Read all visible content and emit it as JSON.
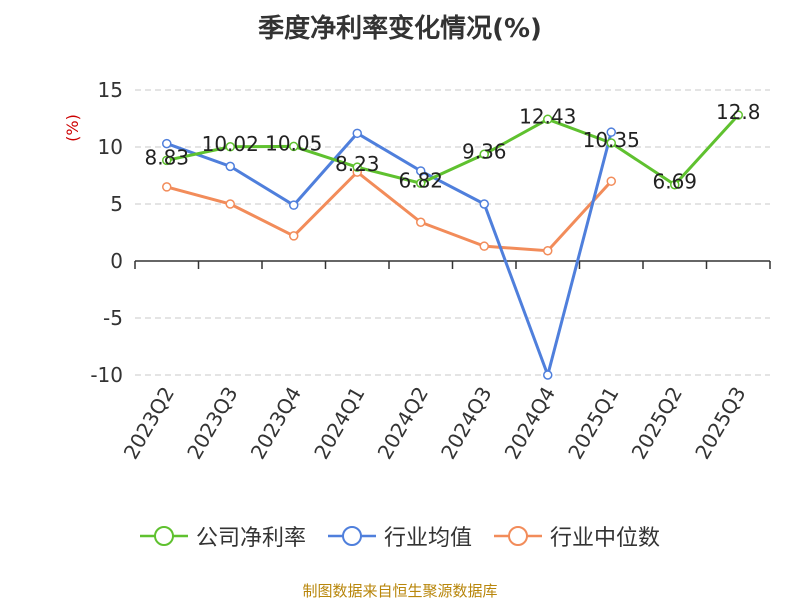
{
  "chart_data": {
    "type": "line",
    "title": "季度净利率变化情况(%)",
    "ylabel": "(%)",
    "categories": [
      "2023Q2",
      "2023Q3",
      "2023Q4",
      "2024Q1",
      "2024Q2",
      "2024Q3",
      "2024Q4",
      "2025Q1",
      "2025Q2",
      "2025Q3"
    ],
    "ylim": [
      -10,
      15
    ],
    "yticks": [
      15,
      10,
      5,
      0,
      -5,
      -10
    ],
    "grid": true,
    "legend_position": "bottom",
    "series": [
      {
        "name": "公司净利率",
        "color": "#5fc12f",
        "values": [
          8.83,
          10.02,
          10.05,
          8.23,
          6.82,
          9.36,
          12.43,
          10.35,
          6.69,
          12.8
        ],
        "labels": [
          "8.83",
          "10.02",
          "10.05",
          "8.23",
          "6.82",
          "9.36",
          "12.43",
          "10.35",
          "6.69",
          "12.8"
        ]
      },
      {
        "name": "行业均值",
        "color": "#4f7fdc",
        "values": [
          10.3,
          8.3,
          4.9,
          11.2,
          7.9,
          5.0,
          -10.0,
          11.3,
          null,
          null
        ]
      },
      {
        "name": "行业中位数",
        "color": "#f28c5a",
        "values": [
          6.5,
          5.0,
          2.2,
          7.8,
          3.4,
          1.3,
          0.9,
          7.0,
          null,
          null
        ]
      }
    ]
  },
  "footer": "制图数据来自恒生聚源数据库"
}
